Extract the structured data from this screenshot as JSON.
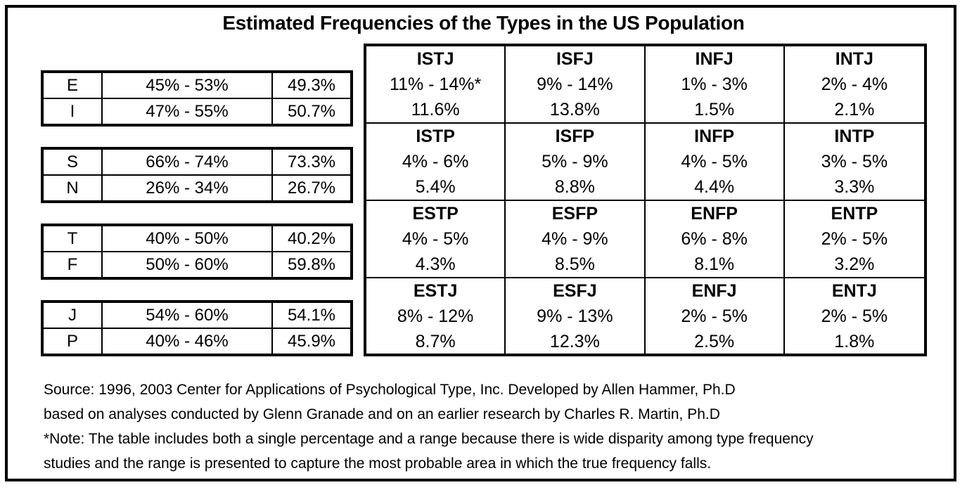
{
  "title": "Estimated Frequencies of the Types in the US Population",
  "dichotomy_tables": [
    {
      "name": "E-I",
      "rows": [
        {
          "letter": "E",
          "range": "45% - 53%",
          "pct": "49.3%"
        },
        {
          "letter": "I",
          "range": "47% - 55%",
          "pct": "50.7%"
        }
      ]
    },
    {
      "name": "S-N",
      "rows": [
        {
          "letter": "S",
          "range": "66% - 74%",
          "pct": "73.3%"
        },
        {
          "letter": "N",
          "range": "26% - 34%",
          "pct": "26.7%"
        }
      ]
    },
    {
      "name": "T-F",
      "rows": [
        {
          "letter": "T",
          "range": "40% - 50%",
          "pct": "40.2%"
        },
        {
          "letter": "F",
          "range": "50% - 60%",
          "pct": "59.8%"
        }
      ]
    },
    {
      "name": "J-P",
      "rows": [
        {
          "letter": "J",
          "range": "54% - 60%",
          "pct": "54.1%"
        },
        {
          "letter": "P",
          "range": "40% - 46%",
          "pct": "45.9%"
        }
      ]
    }
  ],
  "type_grid": {
    "rows": [
      [
        {
          "name": "ISTJ",
          "range": "11% - 14%*",
          "pct": "11.6%"
        },
        {
          "name": "ISFJ",
          "range": "9% - 14%",
          "pct": "13.8%"
        },
        {
          "name": "INFJ",
          "range": "1% - 3%",
          "pct": "1.5%"
        },
        {
          "name": "INTJ",
          "range": "2% - 4%",
          "pct": "2.1%"
        }
      ],
      [
        {
          "name": "ISTP",
          "range": "4% - 6%",
          "pct": "5.4%"
        },
        {
          "name": "ISFP",
          "range": "5% - 9%",
          "pct": "8.8%"
        },
        {
          "name": "INFP",
          "range": "4% - 5%",
          "pct": "4.4%"
        },
        {
          "name": "INTP",
          "range": "3% - 5%",
          "pct": "3.3%"
        }
      ],
      [
        {
          "name": "ESTP",
          "range": "4% - 5%",
          "pct": "4.3%"
        },
        {
          "name": "ESFP",
          "range": "4% - 9%",
          "pct": "8.5%"
        },
        {
          "name": "ENFP",
          "range": "6% - 8%",
          "pct": "8.1%"
        },
        {
          "name": "ENTP",
          "range": "2% - 5%",
          "pct": "3.2%"
        }
      ],
      [
        {
          "name": "ESTJ",
          "range": "8% - 12%",
          "pct": "8.7%"
        },
        {
          "name": "ESFJ",
          "range": "9% - 13%",
          "pct": "12.3%"
        },
        {
          "name": "ENFJ",
          "range": "2% - 5%",
          "pct": "2.5%"
        },
        {
          "name": "ENTJ",
          "range": "2% - 5%",
          "pct": "1.8%"
        }
      ]
    ]
  },
  "footer": {
    "lines": [
      "Source: 1996, 2003 Center for Applications of Psychological Type, Inc. Developed by Allen Hammer, Ph.D",
      "based on analyses conducted by Glenn Granade and on an earlier research by Charles R. Martin, Ph.D",
      "*Note: The table includes both a single percentage and a range because there is wide disparity among type frequency",
      "studies and the range is presented to capture the most probable area in which the true frequency falls."
    ]
  },
  "colors": {
    "border": "#000000",
    "background": "#ffffff",
    "text": "#000000"
  }
}
